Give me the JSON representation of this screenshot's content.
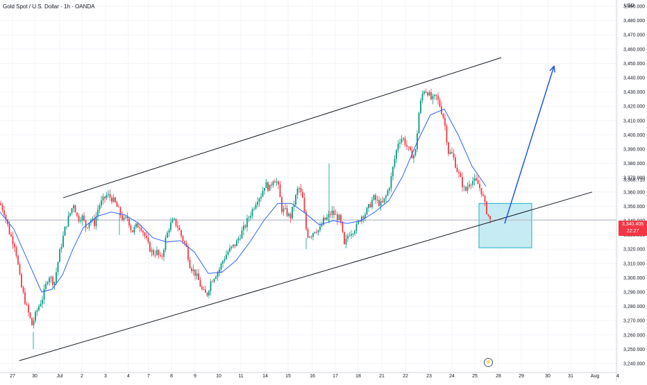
{
  "header": {
    "title": "Gold Spot / U.S. Dollar · 1h · OANDA",
    "currency": "USD"
  },
  "price_tag": {
    "price": "3,340.405",
    "countdown": "22:27"
  },
  "marker_label": "3,368.710",
  "colors": {
    "up": "#089981",
    "down": "#f23645",
    "ma": "#2962ff",
    "arrow": "#1e53e5",
    "zone_fill": "#bde8f0",
    "zone_stroke": "#16b0c9",
    "grid": "#f0f3fa"
  },
  "icons": {
    "event": "lightning-icon"
  },
  "chart_data": {
    "type": "candlestick",
    "title": "Gold Spot / U.S. Dollar · 1h · OANDA",
    "ylabel": "USD",
    "ylim": [
      3237,
      3497
    ],
    "y_ticks": [
      "3,240.000",
      "3,250.000",
      "3,260.000",
      "3,270.000",
      "3,280.000",
      "3,290.000",
      "3,300.000",
      "3,310.000",
      "3,320.000",
      "3,330.000",
      "3,340.000",
      "3,350.000",
      "3,360.000",
      "3,370.000",
      "3,380.000",
      "3,390.000",
      "3,400.000",
      "3,410.000",
      "3,420.000",
      "3,430.000",
      "3,440.000",
      "3,450.000",
      "3,460.000",
      "3,470.000",
      "3,480.000",
      "3,490.000"
    ],
    "x_ticks": [
      "27",
      "30",
      "Jul",
      "2",
      "3",
      "4",
      "7",
      "8",
      "9",
      "10",
      "11",
      "14",
      "15",
      "16",
      "17",
      "18",
      "21",
      "22",
      "23",
      "24",
      "25",
      "28",
      "29",
      "30",
      "31",
      "Aug",
      "4"
    ],
    "grid": true,
    "close_path": [
      [
        0,
        3352
      ],
      [
        6,
        3346
      ],
      [
        14,
        3331
      ],
      [
        22,
        3322
      ],
      [
        30,
        3295
      ],
      [
        38,
        3280
      ],
      [
        46,
        3267
      ],
      [
        54,
        3278
      ],
      [
        62,
        3287
      ],
      [
        70,
        3302
      ],
      [
        78,
        3296
      ],
      [
        86,
        3318
      ],
      [
        94,
        3335
      ],
      [
        100,
        3344
      ],
      [
        106,
        3352
      ],
      [
        112,
        3341
      ],
      [
        118,
        3343
      ],
      [
        124,
        3335
      ],
      [
        130,
        3341
      ],
      [
        136,
        3338
      ],
      [
        142,
        3350
      ],
      [
        148,
        3354
      ],
      [
        154,
        3358
      ],
      [
        160,
        3356
      ],
      [
        166,
        3352
      ],
      [
        172,
        3346
      ],
      [
        178,
        3340
      ],
      [
        184,
        3342
      ],
      [
        190,
        3332
      ],
      [
        196,
        3336
      ],
      [
        202,
        3337
      ],
      [
        208,
        3330
      ],
      [
        214,
        3322
      ],
      [
        220,
        3317
      ],
      [
        226,
        3318
      ],
      [
        232,
        3312
      ],
      [
        238,
        3326
      ],
      [
        244,
        3336
      ],
      [
        250,
        3340
      ],
      [
        256,
        3336
      ],
      [
        262,
        3328
      ],
      [
        268,
        3322
      ],
      [
        274,
        3308
      ],
      [
        280,
        3304
      ],
      [
        286,
        3298
      ],
      [
        292,
        3290
      ],
      [
        298,
        3288
      ],
      [
        304,
        3298
      ],
      [
        310,
        3302
      ],
      [
        316,
        3306
      ],
      [
        322,
        3313
      ],
      [
        328,
        3318
      ],
      [
        334,
        3321
      ],
      [
        340,
        3324
      ],
      [
        346,
        3330
      ],
      [
        352,
        3335
      ],
      [
        358,
        3342
      ],
      [
        364,
        3348
      ],
      [
        370,
        3355
      ],
      [
        376,
        3358
      ],
      [
        382,
        3366
      ],
      [
        388,
        3362
      ],
      [
        394,
        3370
      ],
      [
        400,
        3366
      ],
      [
        406,
        3348
      ],
      [
        412,
        3346
      ],
      [
        418,
        3342
      ],
      [
        424,
        3353
      ],
      [
        430,
        3364
      ],
      [
        436,
        3355
      ],
      [
        442,
        3330
      ],
      [
        448,
        3330
      ],
      [
        454,
        3334
      ],
      [
        460,
        3333
      ],
      [
        466,
        3340
      ],
      [
        472,
        3342
      ],
      [
        478,
        3346
      ],
      [
        484,
        3343
      ],
      [
        490,
        3341
      ],
      [
        496,
        3322
      ],
      [
        502,
        3331
      ],
      [
        508,
        3333
      ],
      [
        514,
        3336
      ],
      [
        520,
        3343
      ],
      [
        526,
        3345
      ],
      [
        532,
        3350
      ],
      [
        538,
        3356
      ],
      [
        544,
        3353
      ],
      [
        550,
        3351
      ],
      [
        556,
        3357
      ],
      [
        562,
        3366
      ],
      [
        568,
        3382
      ],
      [
        574,
        3396
      ],
      [
        580,
        3398
      ],
      [
        586,
        3392
      ],
      [
        592,
        3386
      ],
      [
        598,
        3386
      ],
      [
        604,
        3418
      ],
      [
        610,
        3432
      ],
      [
        616,
        3430
      ],
      [
        622,
        3424
      ],
      [
        628,
        3427
      ],
      [
        634,
        3420
      ],
      [
        640,
        3410
      ],
      [
        646,
        3388
      ],
      [
        652,
        3386
      ],
      [
        658,
        3376
      ],
      [
        664,
        3368
      ],
      [
        670,
        3360
      ],
      [
        676,
        3367
      ],
      [
        682,
        3368
      ],
      [
        688,
        3366
      ],
      [
        694,
        3360
      ],
      [
        700,
        3348
      ],
      [
        706,
        3340
      ]
    ],
    "spikes": [
      [
        474,
        3380,
        3338
      ],
      [
        48,
        3262,
        3250
      ],
      [
        172,
        3345,
        3330
      ],
      [
        441,
        3328,
        3320
      ]
    ],
    "moving_average": [
      [
        0,
        3346
      ],
      [
        20,
        3334
      ],
      [
        40,
        3312
      ],
      [
        60,
        3290
      ],
      [
        75,
        3292
      ],
      [
        90,
        3302
      ],
      [
        105,
        3320
      ],
      [
        120,
        3335
      ],
      [
        140,
        3343
      ],
      [
        160,
        3346
      ],
      [
        180,
        3344
      ],
      [
        200,
        3338
      ],
      [
        220,
        3328
      ],
      [
        240,
        3325
      ],
      [
        260,
        3326
      ],
      [
        280,
        3318
      ],
      [
        300,
        3303
      ],
      [
        320,
        3304
      ],
      [
        340,
        3312
      ],
      [
        360,
        3325
      ],
      [
        380,
        3340
      ],
      [
        400,
        3352
      ],
      [
        420,
        3352
      ],
      [
        440,
        3345
      ],
      [
        460,
        3337
      ],
      [
        480,
        3340
      ],
      [
        500,
        3338
      ],
      [
        520,
        3340
      ],
      [
        540,
        3346
      ],
      [
        560,
        3354
      ],
      [
        580,
        3371
      ],
      [
        600,
        3394
      ],
      [
        620,
        3414
      ],
      [
        640,
        3418
      ],
      [
        660,
        3400
      ],
      [
        680,
        3378
      ],
      [
        700,
        3364
      ]
    ],
    "channel_upper": [
      [
        91,
        3356
      ],
      [
        722,
        3454
      ]
    ],
    "channel_lower": [
      [
        28,
        3242
      ],
      [
        853,
        3360
      ]
    ],
    "projection_arrow": [
      [
        727,
        3338
      ],
      [
        798,
        3448
      ]
    ],
    "zone": {
      "x0": 690,
      "x1": 766,
      "y_top": 3352,
      "y_bottom": 3321
    },
    "current_price": 3340.405,
    "marked_level": 3368.71
  }
}
